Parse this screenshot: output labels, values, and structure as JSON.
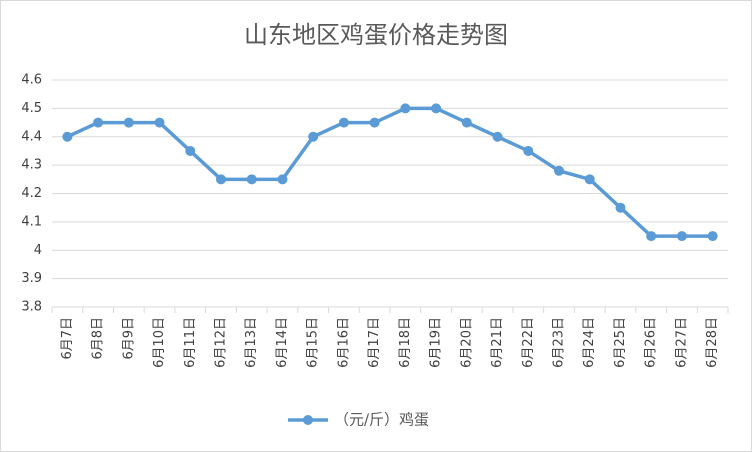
{
  "chart_data": {
    "type": "line",
    "title": "山东地区鸡蛋价格走势图",
    "categories": [
      "6月7日",
      "6月8日",
      "6月9日",
      "6月10日",
      "6月11日",
      "6月12日",
      "6月13日",
      "6月14日",
      "6月15日",
      "6月16日",
      "6月17日",
      "6月18日",
      "6月19日",
      "6月20日",
      "6月21日",
      "6月22日",
      "6月23日",
      "6月24日",
      "6月25日",
      "6月26日",
      "6月27日",
      "6月28日"
    ],
    "series": [
      {
        "name": "（元/斤）鸡蛋",
        "color": "#5b9bd5",
        "values": [
          4.4,
          4.45,
          4.45,
          4.45,
          4.35,
          4.25,
          4.25,
          4.25,
          4.4,
          4.45,
          4.45,
          4.5,
          4.5,
          4.45,
          4.4,
          4.35,
          4.28,
          4.25,
          4.15,
          4.05,
          4.05,
          4.05
        ]
      }
    ],
    "ylim": [
      3.8,
      4.6
    ],
    "yticks": [
      3.8,
      3.9,
      4,
      4.1,
      4.2,
      4.3,
      4.4,
      4.5,
      4.6
    ],
    "grid": true,
    "legend": "bottom"
  }
}
